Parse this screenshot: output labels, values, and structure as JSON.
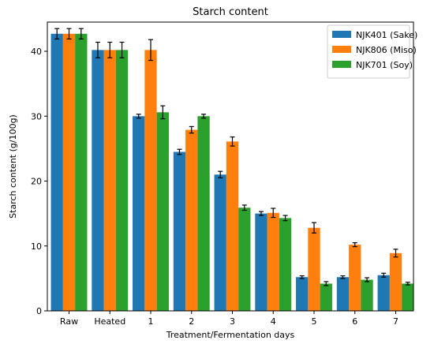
{
  "chart_data": {
    "type": "bar",
    "title": "Starch content",
    "xlabel": "Treatment/Fermentation days",
    "ylabel": "Starch content (g/100g)",
    "categories": [
      "Raw",
      "Heated",
      "1",
      "2",
      "3",
      "4",
      "5",
      "6",
      "7"
    ],
    "ylim": [
      0,
      44.5
    ],
    "yticks": [
      0,
      10,
      20,
      30,
      40
    ],
    "grid": false,
    "legend_position": "top-right",
    "series": [
      {
        "name": "NJK401 (Sake)",
        "color": "#1f77b4",
        "values": [
          42.7,
          40.2,
          30.0,
          24.5,
          21.0,
          15.0,
          5.2,
          5.2,
          5.5
        ],
        "errors": [
          0.8,
          1.2,
          0.3,
          0.4,
          0.5,
          0.3,
          0.2,
          0.2,
          0.3
        ]
      },
      {
        "name": "NJK806 (Miso)",
        "color": "#ff7f0e",
        "values": [
          42.7,
          40.2,
          40.2,
          27.9,
          26.1,
          15.1,
          12.8,
          10.2,
          8.9
        ],
        "errors": [
          0.8,
          1.2,
          1.6,
          0.5,
          0.7,
          0.7,
          0.8,
          0.3,
          0.6
        ]
      },
      {
        "name": "NJK701 (Soy)",
        "color": "#2ca02c",
        "values": [
          42.7,
          40.2,
          30.6,
          30.0,
          15.9,
          14.3,
          4.2,
          4.8,
          4.2
        ],
        "errors": [
          0.8,
          1.2,
          1.0,
          0.3,
          0.4,
          0.4,
          0.3,
          0.3,
          0.2
        ]
      }
    ]
  }
}
